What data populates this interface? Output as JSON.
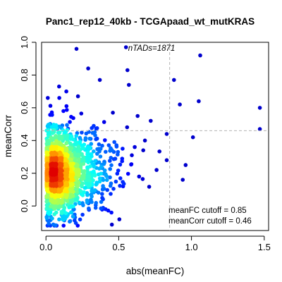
{
  "chart_data": {
    "type": "scatter",
    "title": "Panc1_rep12_40kb - TCGApaad_wt_mutKRAS",
    "xlabel": "abs(meanFC)",
    "ylabel": "meanCorr",
    "xlim": [
      -0.03,
      1.53
    ],
    "ylim": [
      -0.15,
      1.0
    ],
    "x_ticks": [
      0.0,
      0.5,
      1.0,
      1.5
    ],
    "x_tick_labels": [
      "0.0",
      "0.5",
      "1.0",
      "1.5"
    ],
    "y_ticks": [
      0.0,
      0.2,
      0.4,
      0.6,
      0.8,
      1.0
    ],
    "y_tick_labels": [
      "0.0",
      "0.2",
      "0.4",
      "0.6",
      "0.8",
      "1.0"
    ],
    "grid": false,
    "density_colored": true,
    "colors": {
      "density_low": "#00008f",
      "density_mid": "#00ffff",
      "density_high": "#ff0000",
      "cutoff_line": "#b4b4b4"
    },
    "annotation_top": "nTADs=1871",
    "n_tads": 1871,
    "cutoffs": {
      "meanFC": 0.85,
      "meanCorr": 0.46,
      "meanFC_label": "meanFC cutoff = 0.85",
      "meanCorr_label": "meanCorr cutoff = 0.46"
    },
    "outlier_points": [
      {
        "x": 0.21,
        "y": 0.96
      },
      {
        "x": 0.55,
        "y": 0.97
      },
      {
        "x": 0.29,
        "y": 0.84
      },
      {
        "x": 0.56,
        "y": 0.83
      },
      {
        "x": 0.37,
        "y": 0.77
      },
      {
        "x": 0.57,
        "y": 0.74
      },
      {
        "x": 0.88,
        "y": 0.77
      },
      {
        "x": 0.92,
        "y": 0.62
      },
      {
        "x": 1.06,
        "y": 0.92
      },
      {
        "x": 1.05,
        "y": 0.64
      },
      {
        "x": 1.47,
        "y": 0.6
      },
      {
        "x": 1.47,
        "y": 0.47
      },
      {
        "x": 0.96,
        "y": 0.25
      },
      {
        "x": 0.94,
        "y": 0.16
      },
      {
        "x": 1.01,
        "y": 0.42
      },
      {
        "x": 0.83,
        "y": 0.44
      },
      {
        "x": 0.76,
        "y": 0.22
      },
      {
        "x": 0.83,
        "y": 0.28
      },
      {
        "x": 0.72,
        "y": 0.52
      },
      {
        "x": 0.09,
        "y": 0.73
      },
      {
        "x": 0.12,
        "y": 0.58
      },
      {
        "x": 0.22,
        "y": 0.67
      },
      {
        "x": 0.14,
        "y": 0.7
      },
      {
        "x": 0.46,
        "y": 0.57
      },
      {
        "x": 0.63,
        "y": 0.55
      },
      {
        "x": 0.45,
        "y": -0.04
      },
      {
        "x": 0.41,
        "y": -0.02
      },
      {
        "x": 0.53,
        "y": 0.12
      },
      {
        "x": 0.64,
        "y": 0.18
      },
      {
        "x": 0.31,
        "y": 0.07
      },
      {
        "x": 0.2,
        "y": -0.07
      },
      {
        "x": 0.03,
        "y": -0.12
      },
      {
        "x": 0.61,
        "y": 0.36
      },
      {
        "x": 0.68,
        "y": 0.4
      },
      {
        "x": 0.59,
        "y": 0.31
      }
    ]
  }
}
